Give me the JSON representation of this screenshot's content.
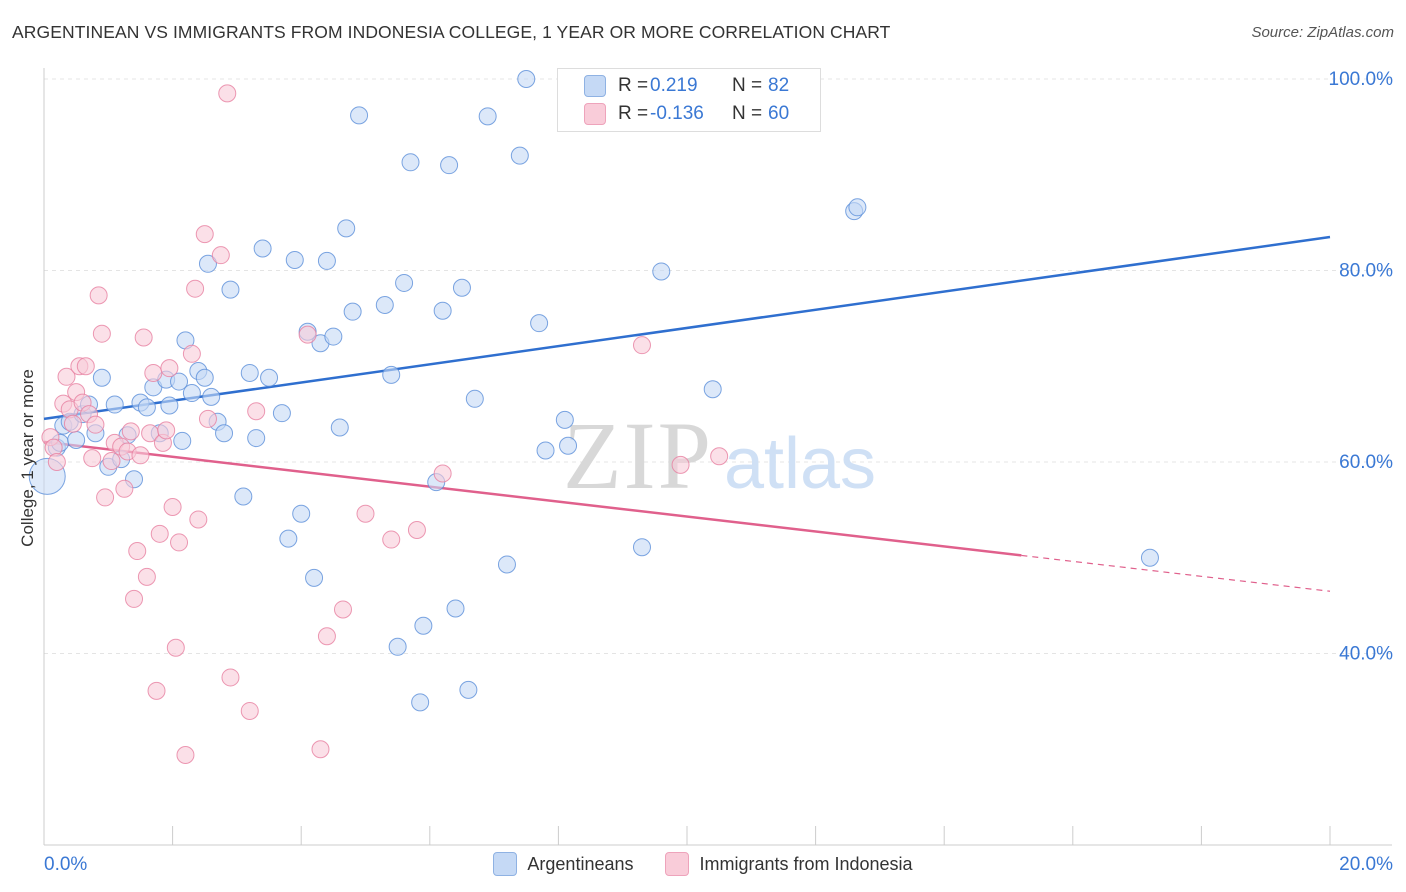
{
  "title": "ARGENTINEAN VS IMMIGRANTS FROM INDONESIA COLLEGE, 1 YEAR OR MORE CORRELATION CHART",
  "source": "Source: ZipAtlas.com",
  "watermark": {
    "zip": "ZIP",
    "atlas": "atlas"
  },
  "stats": [
    {
      "r_label": "R =",
      "r_value": "0.219",
      "n_label": "N =",
      "n_value": "82",
      "color": "#5b8fd9"
    },
    {
      "r_label": "R =",
      "r_value": "-0.136",
      "n_label": "N =",
      "n_value": "60",
      "color": "#e77fa0"
    }
  ],
  "chart_data": {
    "type": "scatter",
    "xlabel": "",
    "ylabel": "College, 1 year or more",
    "xlim": [
      0,
      20
    ],
    "ylim": [
      20,
      102
    ],
    "x_tick_labels": [
      "0.0%",
      "20.0%"
    ],
    "y_tick_labels": [
      {
        "value": 100,
        "label": "100.0%"
      },
      {
        "value": 80,
        "label": "80.0%"
      },
      {
        "value": 60,
        "label": "60.0%"
      },
      {
        "value": 40,
        "label": "40.0%"
      }
    ],
    "legend_position": "bottom",
    "series": [
      {
        "name": "Argentineans",
        "color": "#5b8fd9",
        "fill": "#c5d9f5",
        "trend": {
          "x0": 0,
          "y0": 64.5,
          "x1": 20,
          "y1": 83.5,
          "solid_until": 20
        },
        "points": [
          [
            0.05,
            58.5
          ],
          [
            0.2,
            61.5
          ],
          [
            0.25,
            62
          ],
          [
            0.3,
            63.8
          ],
          [
            0.4,
            64.2
          ],
          [
            0.5,
            62.3
          ],
          [
            0.6,
            65
          ],
          [
            0.7,
            66
          ],
          [
            0.8,
            63
          ],
          [
            0.9,
            68.8
          ],
          [
            1.0,
            59.5
          ],
          [
            1.1,
            66
          ],
          [
            1.2,
            60.3
          ],
          [
            1.3,
            62.8
          ],
          [
            1.4,
            58.2
          ],
          [
            1.5,
            66.2
          ],
          [
            1.6,
            65.7
          ],
          [
            1.7,
            67.8
          ],
          [
            1.8,
            63
          ],
          [
            1.9,
            68.6
          ],
          [
            1.95,
            65.9
          ],
          [
            2.1,
            68.4
          ],
          [
            2.15,
            62.2
          ],
          [
            2.2,
            72.7
          ],
          [
            2.3,
            67.2
          ],
          [
            2.4,
            69.5
          ],
          [
            2.5,
            68.8
          ],
          [
            2.55,
            80.7
          ],
          [
            2.6,
            66.8
          ],
          [
            2.7,
            64.2
          ],
          [
            2.8,
            63
          ],
          [
            2.9,
            78
          ],
          [
            3.1,
            56.4
          ],
          [
            3.2,
            69.3
          ],
          [
            3.3,
            62.5
          ],
          [
            3.4,
            82.3
          ],
          [
            3.5,
            68.8
          ],
          [
            3.7,
            65.1
          ],
          [
            3.8,
            52
          ],
          [
            3.9,
            81.1
          ],
          [
            4.0,
            54.6
          ],
          [
            4.1,
            73.6
          ],
          [
            4.2,
            47.9
          ],
          [
            4.3,
            72.4
          ],
          [
            4.4,
            81
          ],
          [
            4.5,
            73.1
          ],
          [
            4.6,
            63.6
          ],
          [
            4.7,
            84.4
          ],
          [
            4.8,
            75.7
          ],
          [
            4.9,
            96.2
          ],
          [
            5.3,
            76.4
          ],
          [
            5.4,
            69.1
          ],
          [
            5.5,
            40.7
          ],
          [
            5.6,
            78.7
          ],
          [
            5.7,
            91.3
          ],
          [
            5.9,
            42.9
          ],
          [
            5.85,
            34.9
          ],
          [
            6.1,
            57.9
          ],
          [
            6.2,
            75.8
          ],
          [
            6.3,
            91
          ],
          [
            6.4,
            44.7
          ],
          [
            6.5,
            78.2
          ],
          [
            6.6,
            36.2
          ],
          [
            6.7,
            66.6
          ],
          [
            6.9,
            96.1
          ],
          [
            7.2,
            49.3
          ],
          [
            7.4,
            92
          ],
          [
            7.5,
            100
          ],
          [
            7.7,
            74.5
          ],
          [
            7.8,
            61.2
          ],
          [
            8.1,
            64.4
          ],
          [
            8.15,
            61.7
          ],
          [
            8.4,
            97
          ],
          [
            9.3,
            51.1
          ],
          [
            9.6,
            79.9
          ],
          [
            9.7,
            100.2
          ],
          [
            10.4,
            67.6
          ],
          [
            12.6,
            86.2
          ],
          [
            12.65,
            86.6
          ],
          [
            17.2,
            50
          ]
        ]
      },
      {
        "name": "Immigrants from Indonesia",
        "color": "#e77fa0",
        "fill": "#f9ccd9",
        "trend": {
          "x0": 0,
          "y0": 62.1,
          "x1": 20,
          "y1": 46.5,
          "solid_until": 15.2
        },
        "points": [
          [
            0.1,
            62.6
          ],
          [
            0.15,
            61.5
          ],
          [
            0.2,
            60
          ],
          [
            0.3,
            66.1
          ],
          [
            0.35,
            68.9
          ],
          [
            0.4,
            65.5
          ],
          [
            0.45,
            64
          ],
          [
            0.5,
            67.3
          ],
          [
            0.55,
            70
          ],
          [
            0.6,
            66.2
          ],
          [
            0.65,
            70
          ],
          [
            0.7,
            65
          ],
          [
            0.75,
            60.4
          ],
          [
            0.8,
            63.9
          ],
          [
            0.85,
            77.4
          ],
          [
            0.9,
            73.4
          ],
          [
            0.95,
            56.3
          ],
          [
            1.05,
            60.1
          ],
          [
            1.1,
            62
          ],
          [
            1.2,
            61.6
          ],
          [
            1.25,
            57.2
          ],
          [
            1.3,
            61.1
          ],
          [
            1.35,
            63.2
          ],
          [
            1.4,
            45.7
          ],
          [
            1.45,
            50.7
          ],
          [
            1.5,
            60.7
          ],
          [
            1.55,
            73
          ],
          [
            1.6,
            48
          ],
          [
            1.65,
            63
          ],
          [
            1.7,
            69.3
          ],
          [
            1.75,
            36.1
          ],
          [
            1.8,
            52.5
          ],
          [
            1.85,
            62
          ],
          [
            1.9,
            63.3
          ],
          [
            1.95,
            69.8
          ],
          [
            2.0,
            55.3
          ],
          [
            2.05,
            40.6
          ],
          [
            2.1,
            51.6
          ],
          [
            2.2,
            29.4
          ],
          [
            2.3,
            71.3
          ],
          [
            2.35,
            78.1
          ],
          [
            2.4,
            54
          ],
          [
            2.5,
            83.8
          ],
          [
            2.55,
            64.5
          ],
          [
            2.75,
            81.6
          ],
          [
            2.85,
            98.5
          ],
          [
            2.9,
            37.5
          ],
          [
            3.2,
            34
          ],
          [
            3.3,
            65.3
          ],
          [
            4.1,
            73.3
          ],
          [
            4.3,
            30
          ],
          [
            4.4,
            41.8
          ],
          [
            4.65,
            44.6
          ],
          [
            5.0,
            54.6
          ],
          [
            5.4,
            51.9
          ],
          [
            5.8,
            52.9
          ],
          [
            6.2,
            58.8
          ],
          [
            9.3,
            72.2
          ],
          [
            9.9,
            59.7
          ],
          [
            10.5,
            60.6
          ]
        ]
      }
    ]
  }
}
